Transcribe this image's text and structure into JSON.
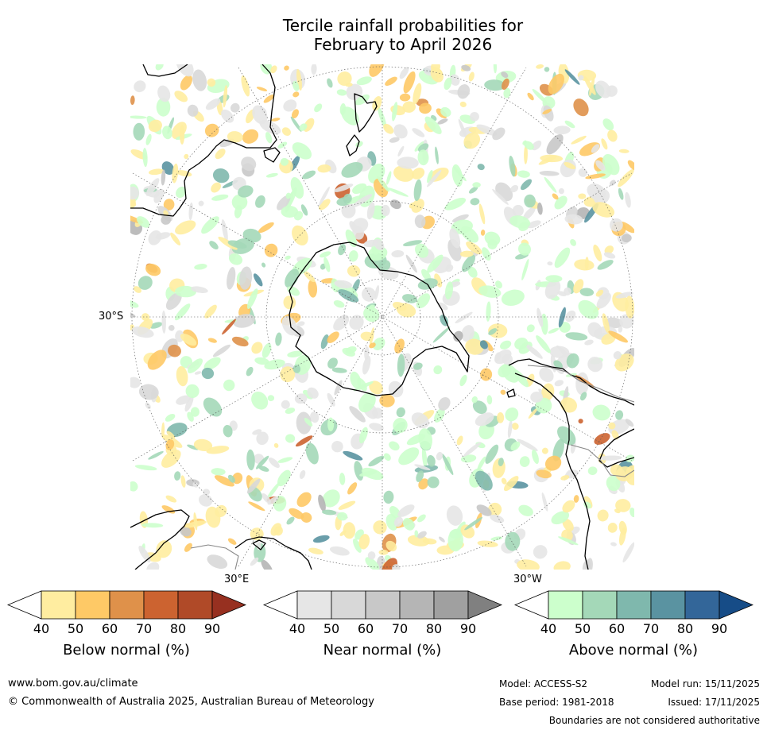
{
  "title": {
    "line1": "Tercile rainfall probabilities for",
    "line2": "February to April 2026"
  },
  "graticule_labels": {
    "lat_30s": "30°S",
    "lon_30e": "30°E",
    "lon_30w": "30°W"
  },
  "colorbars": [
    {
      "title": "Below normal (%)",
      "ticks": [
        "40",
        "50",
        "60",
        "70",
        "80",
        "90"
      ],
      "colors": [
        "#ffffff",
        "#ffeda0",
        "#fec966",
        "#df914a",
        "#cc6330",
        "#b04a28",
        "#973020"
      ]
    },
    {
      "title": "Near normal (%)",
      "ticks": [
        "40",
        "50",
        "60",
        "70",
        "80",
        "90"
      ],
      "colors": [
        "#ffffff",
        "#e6e6e6",
        "#d8d8d8",
        "#c8c8c8",
        "#b5b5b5",
        "#a0a0a0",
        "#808080"
      ]
    },
    {
      "title": "Above normal (%)",
      "ticks": [
        "40",
        "50",
        "60",
        "70",
        "80",
        "90"
      ],
      "colors": [
        "#ffffff",
        "#ccffcc",
        "#a4d8b8",
        "#7fb8ad",
        "#5a93a1",
        "#336699",
        "#164c87"
      ]
    }
  ],
  "footer": {
    "url": "www.bom.gov.au/climate",
    "copyright": "© Commonwealth of Australia 2025, Australian Bureau of Meteorology",
    "model": "Model: ACCESS-S2",
    "model_run": "Model run: 15/11/2025",
    "base_period": "Base period: 1981-2018",
    "issued": "Issued: 17/11/2025",
    "disclaimer": "Boundaries are not considered authoritative"
  }
}
